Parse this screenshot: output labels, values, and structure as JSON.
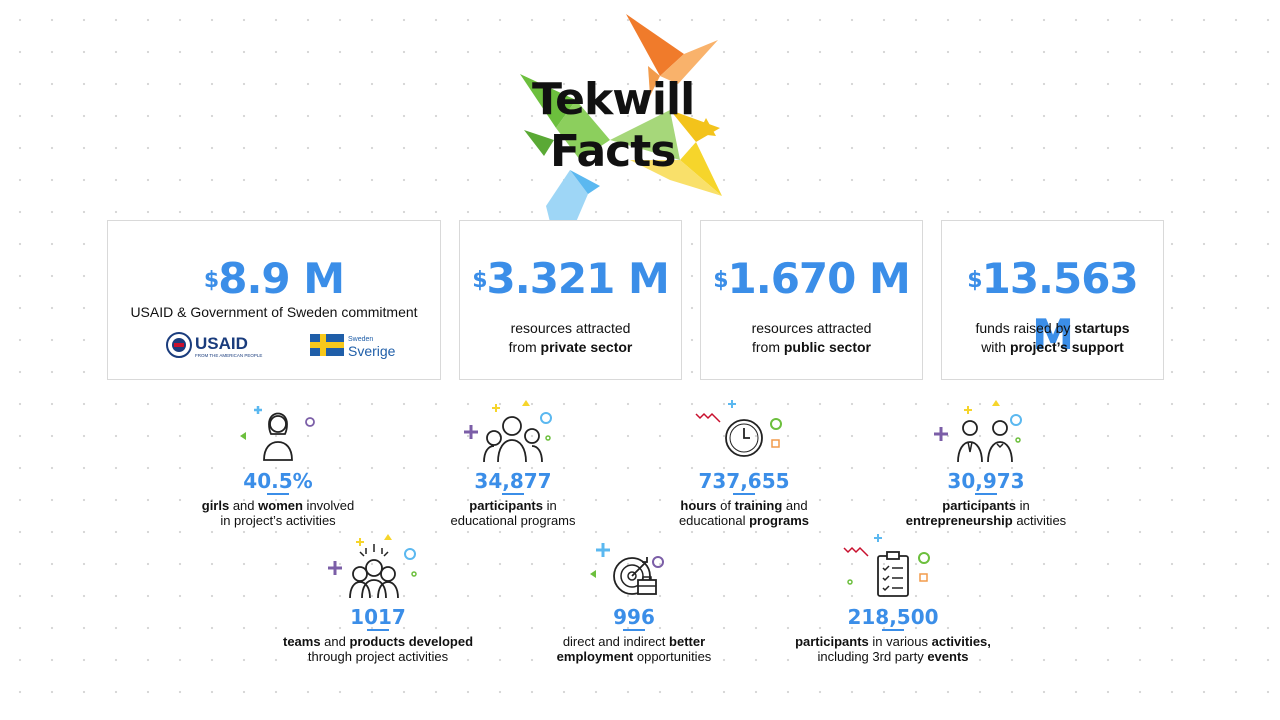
{
  "logo": {
    "line1": "Tekwill",
    "line2": "Facts"
  },
  "cards": [
    {
      "currency": "$",
      "value": "8.9 M",
      "desc": "USAID & Government of Sweden commitment"
    },
    {
      "currency": "$",
      "value": "3.321 M",
      "line1": "resources attracted",
      "line2_pre": "from ",
      "line2_bold": "private sector"
    },
    {
      "currency": "$",
      "value": "1.670 M",
      "line1": "resources attracted",
      "line2_pre": "from ",
      "line2_bold": "public sector"
    },
    {
      "currency": "$",
      "value": "13.563 M",
      "line1_pre": "funds raised by ",
      "line1_bold": "startups",
      "line2_pre": "with ",
      "line2_bold": "project’s support"
    }
  ],
  "partner_logos": {
    "usaid": "USAID",
    "usaid_tagline": "FROM THE AMERICAN PEOPLE",
    "sweden_small": "Sweden",
    "sweden_big": "Sverige"
  },
  "stats": [
    {
      "value": "40.5%",
      "b1": "girls",
      "t1": " and ",
      "b2": "women",
      "t2": " involved",
      "line2": "in project’s activities",
      "icon": "woman-icon"
    },
    {
      "value": "34,877",
      "b1": "participants",
      "t1": " in",
      "line2": "educational programs",
      "icon": "group-icon"
    },
    {
      "value": "737,655",
      "b1": "hours",
      "t1": " of ",
      "b2": "training",
      "t2": " and",
      "line2_pre": "educational ",
      "line2_bold": "programs",
      "icon": "clock-icon"
    },
    {
      "value": "30,973",
      "b1": "participants",
      "t1": " in",
      "line2_bold": "entrepreneurship",
      "line2_post": " activities",
      "icon": "business-people-icon"
    },
    {
      "value": "1017",
      "b1": "teams",
      "t1": " and ",
      "b2": "products developed",
      "line2": "through project activities",
      "icon": "team-icon"
    },
    {
      "value": "996",
      "t0": "direct and indirect ",
      "b1": "better",
      "line2_bold": "employment",
      "line2_post": " opportunities",
      "icon": "target-briefcase-icon"
    },
    {
      "value": "218,500",
      "b1": "participants",
      "t1": " in various ",
      "b2": "activities,",
      "line2_pre": "including 3rd party ",
      "line2_bold": "events",
      "icon": "checklist-icon"
    }
  ],
  "colors": {
    "accent": "#3b8ee8",
    "orange": "#f07b2b",
    "yellow": "#f6cd1b",
    "green": "#6cbf3d",
    "blue": "#5bb8f0",
    "purple": "#7b5ea7"
  }
}
